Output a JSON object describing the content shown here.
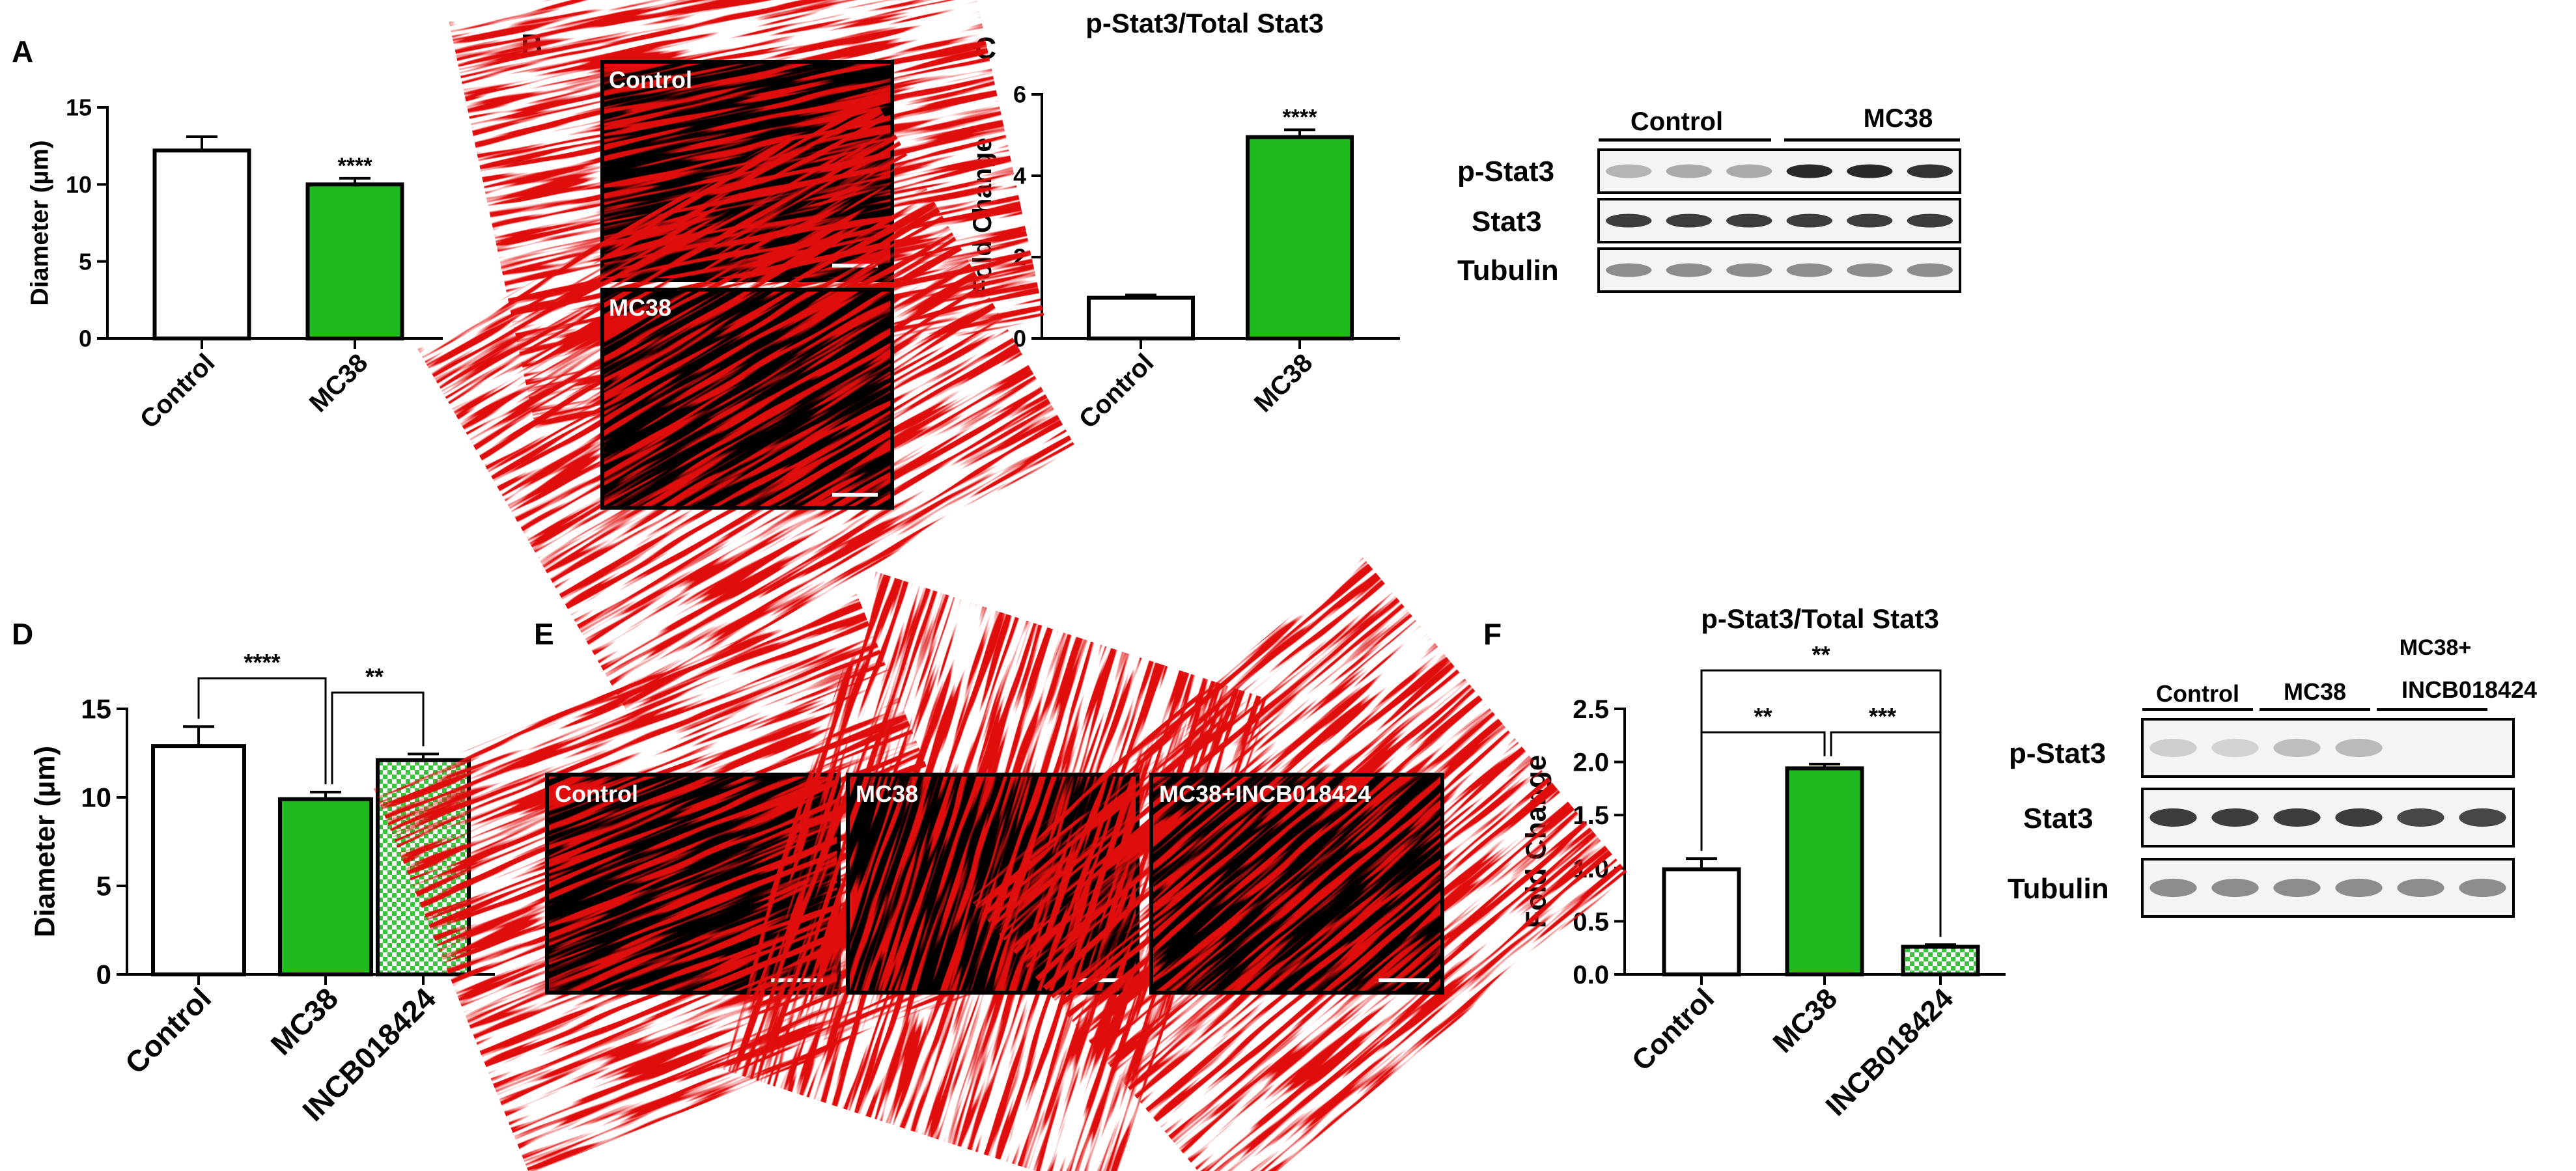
{
  "panels": {
    "a": "A",
    "b": "B",
    "c": "C",
    "d": "D",
    "e": "E",
    "f": "F"
  },
  "colors": {
    "green": "#1FBA1F",
    "red_stain": "#E01010",
    "pattern_green": "#39C23B",
    "white": "#FFFFFF",
    "black": "#000000"
  },
  "chart_data": [
    {
      "panel": "A",
      "type": "bar",
      "title": "",
      "xlabel": "",
      "ylabel": "Diameter (µm)",
      "ylim": [
        0,
        15
      ],
      "yticks": [
        "0",
        "5",
        "10",
        "15"
      ],
      "categories": [
        "Control",
        "MC38"
      ],
      "values": [
        12.2,
        10.0
      ],
      "errors": [
        0.9,
        0.4
      ],
      "fills": [
        "white",
        "green"
      ],
      "significance": [
        "",
        "****"
      ]
    },
    {
      "panel": "C",
      "type": "bar",
      "title": "p-Stat3/Total Stat3",
      "xlabel": "",
      "ylabel": "Fold Change",
      "ylim": [
        0,
        6
      ],
      "yticks": [
        "0",
        "2",
        "4",
        "6"
      ],
      "categories": [
        "Control",
        "MC38"
      ],
      "values": [
        1.0,
        4.95
      ],
      "errors": [
        0.07,
        0.18
      ],
      "fills": [
        "white",
        "green"
      ],
      "significance": [
        "",
        "****"
      ]
    },
    {
      "panel": "D",
      "type": "bar",
      "title": "",
      "xlabel": "",
      "ylabel": "Diameter (µm)",
      "ylim": [
        0,
        15
      ],
      "yticks": [
        "0",
        "5",
        "10",
        "15"
      ],
      "categories": [
        "Control",
        "MC38",
        "INCB018424"
      ],
      "values": [
        12.9,
        9.9,
        12.1
      ],
      "errors": [
        1.1,
        0.4,
        0.35
      ],
      "fills": [
        "white",
        "green",
        "pattern"
      ],
      "brackets": [
        {
          "from": 0,
          "to": 1,
          "label": "****"
        },
        {
          "from": 1,
          "to": 2,
          "label": "**"
        }
      ]
    },
    {
      "panel": "F",
      "type": "bar",
      "title": "p-Stat3/Total Stat3",
      "xlabel": "",
      "ylabel": "Fold Change",
      "ylim": [
        0,
        2.5
      ],
      "yticks": [
        "0.0",
        "0.5",
        "1.0",
        "1.5",
        "2.0",
        "2.5"
      ],
      "categories": [
        "Control",
        "MC38",
        "INCB018424"
      ],
      "values": [
        0.99,
        1.94,
        0.26
      ],
      "errors": [
        0.1,
        0.04,
        0.02
      ],
      "fills": [
        "white",
        "green",
        "pattern"
      ],
      "brackets": [
        {
          "from": 0,
          "to": 2,
          "label": "**"
        },
        {
          "from": 0,
          "to": 1,
          "label": "**"
        },
        {
          "from": 1,
          "to": 2,
          "label": "***"
        }
      ]
    }
  ],
  "micrographs": {
    "b": [
      {
        "label": "Control"
      },
      {
        "label": "MC38"
      }
    ],
    "e": [
      {
        "label": "Control"
      },
      {
        "label": "MC38"
      },
      {
        "label": "MC38+INCB018424"
      }
    ]
  },
  "blots": {
    "c": {
      "groups": [
        "Control",
        "MC38"
      ],
      "rows": [
        {
          "label": "p-Stat3",
          "intensities": [
            0.25,
            0.3,
            0.3,
            0.95,
            0.95,
            0.9
          ]
        },
        {
          "label": "Stat3",
          "intensities": [
            0.85,
            0.85,
            0.85,
            0.85,
            0.85,
            0.85
          ]
        },
        {
          "label": "Tubulin",
          "intensities": [
            0.45,
            0.45,
            0.45,
            0.45,
            0.45,
            0.45
          ]
        }
      ]
    },
    "f": {
      "groups": [
        "Control",
        "MC38",
        "MC38+",
        "INCB018424"
      ],
      "rows": [
        {
          "label": "p-Stat3",
          "intensities": [
            0.12,
            0.1,
            0.2,
            0.22,
            0.0,
            0.0
          ]
        },
        {
          "label": "Stat3",
          "intensities": [
            0.85,
            0.85,
            0.85,
            0.85,
            0.8,
            0.8
          ]
        },
        {
          "label": "Tubulin",
          "intensities": [
            0.45,
            0.45,
            0.45,
            0.45,
            0.45,
            0.45
          ]
        }
      ]
    }
  }
}
